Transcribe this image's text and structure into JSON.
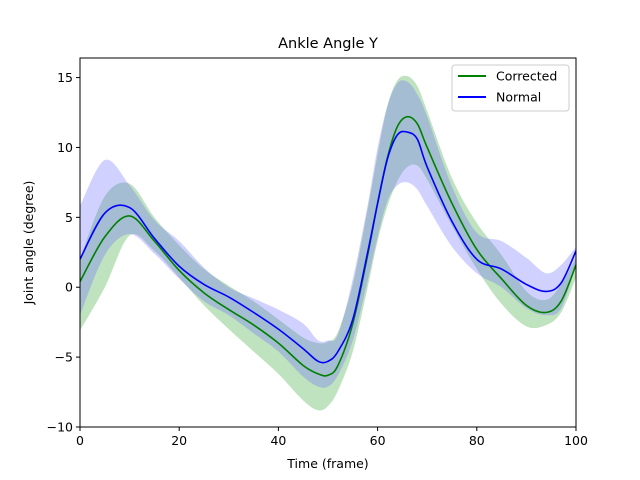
{
  "chart_data": {
    "type": "line",
    "title": "Ankle Angle Y",
    "xlabel": "Time (frame)",
    "ylabel": "Joint angle (degree)",
    "xlim": [
      0,
      100
    ],
    "ylim": [
      -10,
      16.4
    ],
    "xticks": [
      0,
      20,
      40,
      60,
      80,
      100
    ],
    "xtick_labels": [
      "0",
      "20",
      "40",
      "60",
      "80",
      "100"
    ],
    "yticks": [
      -10,
      -5,
      0,
      5,
      10,
      15
    ],
    "ytick_labels": [
      "−10",
      "−5",
      "0",
      "5",
      "10",
      "15"
    ],
    "grid": false,
    "legend_position": "top-right",
    "x": [
      0,
      5,
      10,
      15,
      20,
      25,
      30,
      35,
      40,
      45,
      48,
      50,
      52,
      55,
      58,
      60,
      62,
      64,
      66,
      68,
      70,
      75,
      80,
      85,
      90,
      94,
      97,
      100
    ],
    "series": [
      {
        "name": "Corrected",
        "color": "#008000",
        "band_color": "#2ca02c",
        "mean": [
          0.4,
          3.6,
          5.1,
          3.3,
          1.2,
          -0.4,
          -1.6,
          -2.7,
          -4.0,
          -5.6,
          -6.2,
          -6.3,
          -5.6,
          -2.6,
          2.3,
          6.0,
          9.3,
          11.5,
          12.2,
          11.7,
          10.0,
          6.0,
          2.7,
          0.6,
          -1.3,
          -1.8,
          -1.0,
          1.6
        ],
        "upper": [
          2.0,
          6.5,
          7.4,
          5.0,
          3.0,
          1.3,
          0.1,
          -1.0,
          -2.3,
          -3.6,
          -4.0,
          -3.9,
          -3.2,
          0.2,
          5.6,
          9.5,
          13.0,
          14.8,
          15.1,
          14.4,
          12.6,
          7.8,
          4.6,
          2.3,
          -0.3,
          -0.9,
          0.2,
          2.1
        ],
        "lower": [
          -3.1,
          0.0,
          3.7,
          2.6,
          0.7,
          -1.3,
          -3.0,
          -4.6,
          -6.2,
          -8.1,
          -8.8,
          -8.5,
          -7.4,
          -4.6,
          0.0,
          3.3,
          5.8,
          7.6,
          8.6,
          8.7,
          7.7,
          4.4,
          1.3,
          -1.2,
          -2.8,
          -2.7,
          -1.8,
          0.7
        ]
      },
      {
        "name": "Normal",
        "color": "#0000ff",
        "band_color": "#6666ff",
        "mean": [
          2.0,
          5.3,
          5.7,
          3.5,
          1.5,
          0.2,
          -0.7,
          -1.8,
          -3.0,
          -4.4,
          -5.3,
          -5.3,
          -4.6,
          -2.3,
          2.5,
          6.0,
          9.2,
          10.9,
          11.1,
          10.6,
          8.6,
          4.7,
          2.0,
          1.3,
          0.2,
          -0.3,
          0.3,
          2.6
        ],
        "upper": [
          5.8,
          9.1,
          7.3,
          4.8,
          3.3,
          1.4,
          0.0,
          -0.8,
          -1.6,
          -2.6,
          -3.8,
          -3.8,
          -3.4,
          0.6,
          5.9,
          10.0,
          13.0,
          14.6,
          14.7,
          13.8,
          12.2,
          7.2,
          3.9,
          3.3,
          2.1,
          1.0,
          1.6,
          2.9
        ],
        "lower": [
          -2.0,
          2.3,
          3.8,
          2.4,
          0.6,
          -1.0,
          -2.0,
          -3.3,
          -4.6,
          -6.4,
          -7.1,
          -7.1,
          -6.3,
          -3.8,
          0.5,
          3.6,
          6.2,
          7.3,
          7.5,
          7.0,
          5.8,
          2.9,
          1.0,
          0.0,
          -1.5,
          -2.0,
          -1.5,
          1.6
        ]
      }
    ]
  }
}
